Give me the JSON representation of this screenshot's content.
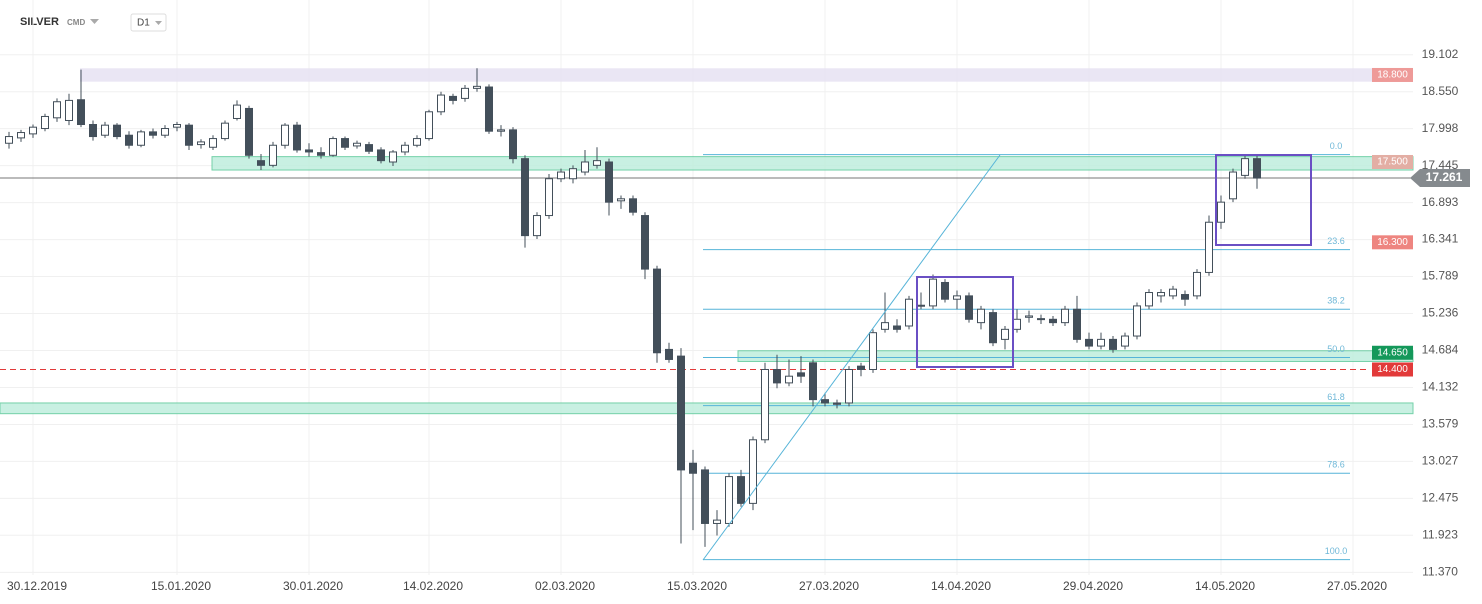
{
  "header": {
    "symbol": "SILVER",
    "market": "CMD",
    "interval": "D1"
  },
  "chart_data": {
    "type": "candlestick",
    "categories": [
      null,
      null,
      "30.12.2019",
      null,
      null,
      null,
      null,
      null,
      null,
      null,
      null,
      null,
      null,
      null,
      "15.01.2020",
      null,
      null,
      null,
      null,
      null,
      null,
      null,
      null,
      null,
      null,
      "30.01.2020",
      null,
      null,
      null,
      null,
      null,
      null,
      null,
      null,
      null,
      "14.02.2020",
      null,
      null,
      null,
      null,
      null,
      null,
      null,
      null,
      null,
      null,
      "02.03.2020",
      null,
      null,
      null,
      null,
      null,
      null,
      null,
      null,
      null,
      null,
      "15.03.2020",
      null,
      null,
      null,
      null,
      null,
      null,
      null,
      null,
      null,
      null,
      "27.03.2020",
      null,
      null,
      null,
      null,
      null,
      null,
      null,
      null,
      null,
      null,
      "14.04.2020",
      null,
      null,
      null,
      null,
      null,
      null,
      null,
      null,
      null,
      null,
      "29.04.2020",
      null,
      null,
      null,
      null,
      null,
      null,
      null,
      null,
      null,
      null,
      "14.05.2020",
      null,
      null,
      null,
      null,
      null,
      null,
      null,
      null,
      null,
      null,
      "27.05.2020"
    ],
    "open": [
      17.78,
      17.86,
      17.92,
      18.0,
      18.16,
      18.12,
      18.43,
      18.06,
      17.9,
      18.05,
      17.9,
      17.75,
      17.95,
      17.9,
      18.02,
      18.05,
      17.76,
      17.72,
      17.85,
      18.15,
      18.3,
      17.52,
      17.45,
      17.75,
      18.05,
      17.68,
      17.64,
      17.6,
      17.85,
      17.74,
      17.76,
      17.68,
      17.5,
      17.65,
      17.75,
      17.85,
      18.25,
      18.48,
      18.45,
      18.6,
      18.62,
      17.96,
      17.98,
      17.55,
      16.4,
      16.7,
      17.25,
      17.25,
      17.35,
      17.45,
      17.5,
      16.92,
      16.95,
      16.7,
      15.9,
      14.7,
      14.6,
      13.0,
      12.9,
      12.1,
      12.1,
      12.8,
      12.4,
      13.35,
      14.4,
      14.2,
      14.35,
      14.5,
      13.95,
      13.9,
      13.9,
      14.45,
      14.4,
      15.0,
      15.05,
      15.05,
      15.35,
      15.35,
      15.7,
      15.45,
      15.5,
      15.1,
      15.25,
      14.85,
      15.0,
      15.18,
      15.16,
      15.15,
      15.1,
      15.3,
      14.85,
      14.75,
      14.85,
      14.75,
      14.9,
      15.35,
      15.5,
      15.5,
      15.52,
      15.5,
      15.85,
      16.6,
      16.95,
      17.3,
      17.55,
      null,
      null,
      null,
      null,
      null,
      null,
      null,
      null
    ],
    "high": [
      17.95,
      17.98,
      18.06,
      18.22,
      18.45,
      18.52,
      18.88,
      18.12,
      18.1,
      18.08,
      17.96,
      17.98,
      18.0,
      18.05,
      18.1,
      18.08,
      17.84,
      17.9,
      18.12,
      18.42,
      18.34,
      17.62,
      17.8,
      18.08,
      18.1,
      17.78,
      17.72,
      17.88,
      17.88,
      17.82,
      17.8,
      17.72,
      17.68,
      17.8,
      17.9,
      18.28,
      18.55,
      18.52,
      18.65,
      18.9,
      18.66,
      18.05,
      18.02,
      17.6,
      16.75,
      17.32,
      17.4,
      17.45,
      17.68,
      17.72,
      17.55,
      17.0,
      17.0,
      16.75,
      15.95,
      14.8,
      14.72,
      13.2,
      12.95,
      12.3,
      12.85,
      12.9,
      13.4,
      14.5,
      14.62,
      14.55,
      14.6,
      14.55,
      14.05,
      13.95,
      14.45,
      14.5,
      15.0,
      15.55,
      15.15,
      15.5,
      15.55,
      15.82,
      15.75,
      15.58,
      15.55,
      15.35,
      15.3,
      15.05,
      15.3,
      15.28,
      15.22,
      15.2,
      15.35,
      15.5,
      14.95,
      14.95,
      14.9,
      14.95,
      15.4,
      15.6,
      15.6,
      15.65,
      15.58,
      15.9,
      16.7,
      17.0,
      17.4,
      17.62,
      17.62,
      null,
      null,
      null,
      null,
      null,
      null,
      null,
      null
    ],
    "low": [
      17.7,
      17.8,
      17.86,
      17.96,
      18.1,
      18.05,
      18.02,
      17.82,
      17.86,
      17.84,
      17.7,
      17.72,
      17.85,
      17.86,
      17.96,
      17.68,
      17.7,
      17.68,
      17.82,
      18.12,
      17.55,
      17.38,
      17.42,
      17.7,
      17.64,
      17.58,
      17.55,
      17.58,
      17.68,
      17.7,
      17.62,
      17.48,
      17.44,
      17.6,
      17.72,
      17.82,
      18.2,
      18.36,
      18.4,
      18.55,
      17.92,
      17.88,
      17.48,
      16.22,
      16.35,
      16.65,
      17.2,
      17.18,
      17.3,
      17.4,
      16.7,
      16.8,
      16.7,
      15.75,
      14.5,
      14.5,
      11.8,
      12.0,
      11.75,
      11.92,
      12.05,
      12.35,
      12.3,
      13.3,
      14.12,
      14.15,
      14.2,
      13.85,
      13.85,
      13.82,
      13.85,
      14.3,
      14.35,
      14.95,
      14.95,
      15.0,
      15.3,
      15.3,
      15.4,
      15.3,
      15.1,
      15.0,
      14.75,
      14.7,
      14.95,
      15.1,
      15.08,
      15.05,
      15.05,
      14.8,
      14.7,
      14.7,
      14.65,
      14.7,
      14.85,
      15.3,
      15.4,
      15.45,
      15.35,
      15.45,
      15.8,
      16.5,
      16.9,
      17.25,
      17.1,
      null,
      null,
      null,
      null,
      null,
      null,
      null,
      null
    ],
    "close": [
      17.88,
      17.94,
      18.02,
      18.18,
      18.4,
      18.42,
      18.06,
      17.88,
      18.05,
      17.88,
      17.75,
      17.95,
      17.9,
      18.0,
      18.06,
      17.75,
      17.8,
      17.85,
      18.08,
      18.35,
      17.6,
      17.45,
      17.75,
      18.05,
      17.68,
      17.65,
      17.6,
      17.85,
      17.72,
      17.78,
      17.66,
      17.52,
      17.65,
      17.75,
      17.85,
      18.25,
      18.5,
      18.42,
      18.6,
      18.63,
      17.96,
      17.98,
      17.55,
      16.4,
      16.7,
      17.25,
      17.35,
      17.4,
      17.5,
      17.52,
      16.9,
      16.95,
      16.75,
      15.9,
      14.65,
      14.55,
      12.9,
      12.85,
      12.1,
      12.15,
      12.8,
      12.4,
      13.35,
      14.4,
      14.2,
      14.3,
      14.3,
      13.95,
      13.9,
      13.88,
      14.4,
      14.4,
      14.95,
      15.1,
      15.0,
      15.45,
      15.36,
      15.75,
      15.45,
      15.5,
      15.15,
      15.3,
      14.8,
      15.0,
      15.15,
      15.2,
      15.15,
      15.1,
      15.3,
      14.85,
      14.75,
      14.85,
      14.7,
      14.9,
      15.35,
      15.55,
      15.55,
      15.6,
      15.45,
      15.85,
      16.6,
      16.9,
      17.35,
      17.55,
      17.26,
      null,
      null,
      null,
      null,
      null,
      null,
      null,
      null
    ],
    "up_color": "#ffffff",
    "down_color": "#434f5a",
    "edge_color": "#434f5a",
    "ylim": [
      11.33,
      19.92
    ],
    "yticks": [
      19.102,
      {
        "value": 18.55,
        "label": "18.550"
      },
      17.998,
      17.445,
      16.893,
      16.341,
      15.789,
      15.236,
      14.684,
      14.132,
      13.579,
      13.027,
      12.475,
      11.923,
      {
        "value": 11.37,
        "label": "11.370"
      }
    ],
    "grid": true,
    "zones": [
      {
        "low": 18.7,
        "high": 18.9,
        "color": "#e6e2f2"
      },
      {
        "low": 17.38,
        "high": 17.58,
        "color": "#bfeedd"
      },
      {
        "low": 14.52,
        "high": 14.68,
        "color": "#bfeedd"
      },
      {
        "low": 13.74,
        "high": 13.9,
        "color": "#bfeedd"
      }
    ],
    "levels": [
      {
        "value": 18.8,
        "label": "18.800",
        "color": "#ee9a98"
      },
      {
        "value": 17.5,
        "label": "17.500",
        "color": "#e3aea4"
      },
      {
        "value": 16.3,
        "label": "16.300",
        "color": "#ee8580"
      },
      {
        "value": 14.65,
        "label": "14.650",
        "color": "#14985a"
      },
      {
        "value": 14.4,
        "label": "14.400",
        "color": "#e23a3a"
      }
    ],
    "last_price": {
      "value": 17.261,
      "label": "17.261",
      "color": "#858a8e"
    },
    "fibonacci": {
      "color": "#56b4d8",
      "levels": [
        {
          "ratio": "0.0",
          "price": 17.61
        },
        {
          "ratio": "23.6",
          "price": 16.19
        },
        {
          "ratio": "38.2",
          "price": 15.3
        },
        {
          "ratio": "50.0",
          "price": 14.58
        },
        {
          "ratio": "61.8",
          "price": 13.86
        },
        {
          "ratio": "78.6",
          "price": 12.85
        },
        {
          "ratio": "100.0",
          "price": 11.56
        }
      ]
    }
  }
}
